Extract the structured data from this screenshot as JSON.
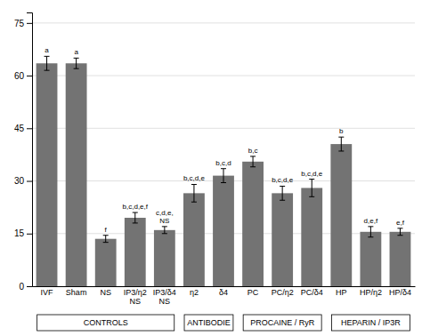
{
  "chart_data": {
    "type": "bar",
    "categories": [
      "IVF",
      "Sham",
      "NS",
      "IP3/η2\nNS",
      "IP3/δ4\nNS",
      "η2",
      "δ4",
      "PC",
      "PC/η2",
      "PC/δ4",
      "HP",
      "HP/η2",
      "HP/δ4"
    ],
    "values": [
      63.5,
      63.5,
      13.5,
      19.5,
      16.0,
      26.5,
      31.5,
      35.5,
      26.5,
      28.0,
      40.5,
      15.5,
      15.5
    ],
    "errors": [
      2.0,
      1.5,
      1.0,
      1.5,
      1.0,
      2.5,
      2.0,
      1.5,
      2.0,
      2.5,
      2.0,
      1.5,
      1.0
    ],
    "annotations": [
      "a",
      "a",
      "f",
      "b,c,d,e,f",
      "c,d,e,\nNS",
      "b,c,d,e",
      "b,c,d",
      "b,c",
      "b,c,d,e",
      "b,c,d,e",
      "b",
      "d,e,f",
      "e,f"
    ],
    "groups": [
      {
        "label": "CONTROLS",
        "first": "IVF",
        "last": "IP3/δ4\nNS"
      },
      {
        "label": "ANTIBODIE",
        "first": "η2",
        "last": "δ4"
      },
      {
        "label": "PROCAINE / RyR",
        "first": "PC",
        "last": "PC/δ4"
      },
      {
        "label": "HEPARIN / IP3R",
        "first": "HP",
        "last": "HP/δ4"
      }
    ],
    "color": "#737373",
    "ylim": [
      0,
      78
    ],
    "yticks": [
      0,
      15,
      30,
      45,
      60,
      75
    ],
    "grid": true
  }
}
